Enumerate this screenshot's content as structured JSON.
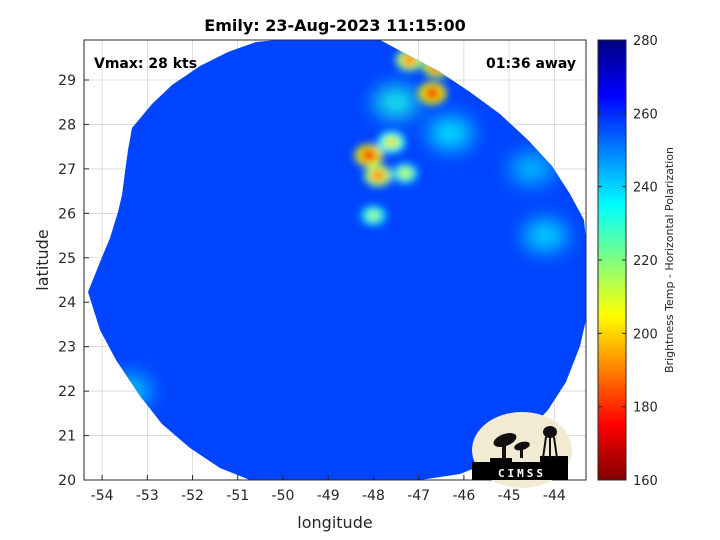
{
  "chart_data": {
    "type": "heatmap",
    "title": "Emily: 23-Aug-2023 11:15:00",
    "xlabel": "longitude",
    "ylabel": "latitude",
    "xlim": [
      -54.4,
      -43.3
    ],
    "ylim": [
      20,
      29.9
    ],
    "x_ticks": [
      -54,
      -53,
      -52,
      -51,
      -50,
      -49,
      -48,
      -47,
      -46,
      -45,
      -44
    ],
    "y_ticks": [
      20,
      21,
      22,
      23,
      24,
      25,
      26,
      27,
      28,
      29
    ],
    "grid": true,
    "annotations": {
      "vmax": "Vmax: 28 kts",
      "time_offset": "01:36 away"
    },
    "colorbar": {
      "label": "Brightness Temp - Horizontal Polarization",
      "range": [
        160,
        280
      ],
      "ticks": [
        160,
        180,
        200,
        220,
        240,
        260,
        280
      ],
      "colormap": "jet"
    },
    "background_value": 257,
    "features": [
      {
        "lon": -48.1,
        "lat": 27.3,
        "value": 172
      },
      {
        "lon": -47.9,
        "lat": 26.85,
        "value": 185
      },
      {
        "lon": -47.6,
        "lat": 27.6,
        "value": 200
      },
      {
        "lon": -47.3,
        "lat": 26.9,
        "value": 210
      },
      {
        "lon": -48.0,
        "lat": 25.95,
        "value": 215
      },
      {
        "lon": -46.7,
        "lat": 28.7,
        "value": 172
      },
      {
        "lon": -47.2,
        "lat": 29.45,
        "value": 185
      },
      {
        "lon": -46.6,
        "lat": 29.3,
        "value": 178
      },
      {
        "lon": -47.5,
        "lat": 28.5,
        "value": 232
      },
      {
        "lon": -46.3,
        "lat": 27.8,
        "value": 236
      },
      {
        "lon": -44.2,
        "lat": 25.5,
        "value": 238
      },
      {
        "lon": -53.4,
        "lat": 22.0,
        "value": 240
      },
      {
        "lon": -44.5,
        "lat": 27.0,
        "value": 242
      }
    ],
    "logo": "CIMSS"
  },
  "colors": {
    "ocean_base": "#1a5ae6",
    "grid": "#c8c8c8"
  }
}
